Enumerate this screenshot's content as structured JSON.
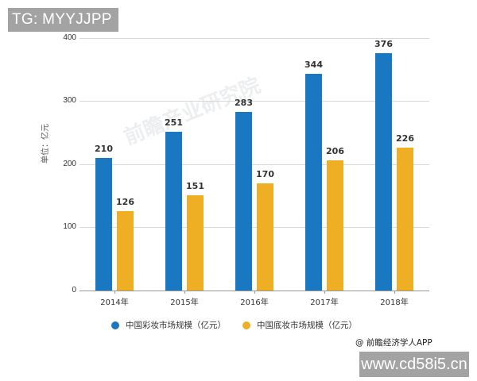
{
  "overlay": {
    "top_badge": "TG: MYYJJPP",
    "bottom_badge": "www.cd58i5.cn",
    "watermark": "前瞻产业研究院"
  },
  "source": "@ 前瞻经济学人APP",
  "chart_data": {
    "type": "bar",
    "title": "",
    "xlabel": "",
    "ylabel": "单位：亿元",
    "ylim": [
      0,
      400
    ],
    "yticks": [
      "0",
      "100",
      "200",
      "300",
      "400"
    ],
    "grid": true,
    "legend_position": "bottom",
    "categories": [
      "2014年",
      "2015年",
      "2016年",
      "2017年",
      "2018年"
    ],
    "series": [
      {
        "name": "中国彩妆市场规模（亿元）",
        "color": "#1a78c2",
        "values": [
          210,
          251,
          283,
          344,
          376
        ]
      },
      {
        "name": "中国底妆市场规模（亿元）",
        "color": "#eeaf25",
        "values": [
          126,
          151,
          170,
          206,
          226
        ]
      }
    ],
    "value_labels": {
      "blue": [
        "210",
        "251",
        "283",
        "344",
        "376"
      ],
      "yellow": [
        "126",
        "151",
        "170",
        "206",
        "226"
      ]
    }
  }
}
